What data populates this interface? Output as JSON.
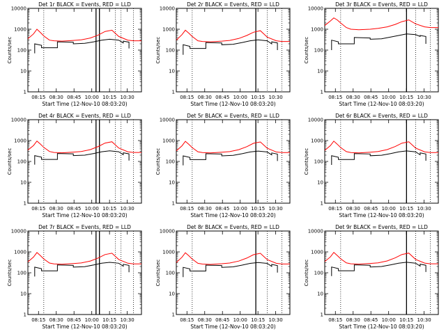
{
  "page": {
    "background": "#ffffff"
  },
  "chart_data": [
    {
      "type": "line",
      "title": "Det 1r BLACK = Events, RED = LLD",
      "xlabel": "Start Time (12-Nov-10 08:03:20)",
      "ylabel": "Counts/sec",
      "yscale": "log",
      "ylim": [
        1,
        10000
      ],
      "yticks": [
        "1",
        "10",
        "100",
        "1000",
        "10000"
      ],
      "xticks": [
        "08:15",
        "08:30",
        "08:45",
        "10:00",
        "10:15",
        "10:30"
      ],
      "series": [
        {
          "color": "#ff0000",
          "x": [
            0,
            0.05,
            0.08,
            0.11,
            0.14,
            0.19,
            0.23,
            0.3,
            0.4,
            0.47,
            0.55,
            0.62,
            0.68,
            0.74,
            0.8,
            0.88,
            0.93,
            1.0
          ],
          "y": [
            350,
            600,
            1000,
            700,
            480,
            300,
            280,
            270,
            290,
            310,
            380,
            530,
            780,
            900,
            450,
            300,
            280,
            280
          ]
        },
        {
          "color": "#000000",
          "x": [
            0.06,
            0.06,
            0.12,
            0.12,
            0.26,
            0.26,
            0.4,
            0.4,
            0.5,
            0.58,
            0.65,
            0.72,
            0.8,
            0.84,
            0.84,
            0.89,
            0.89
          ],
          "y": [
            70,
            200,
            170,
            130,
            130,
            250,
            240,
            200,
            210,
            250,
            300,
            330,
            300,
            220,
            270,
            240,
            120
          ]
        }
      ],
      "markers": [
        0.14,
        0.77,
        0.82,
        0.93
      ],
      "bars": [
        0.6,
        0.63
      ]
    },
    {
      "type": "line",
      "title": "Det 2r BLACK = Events, RED = LLD",
      "xlabel": "Start Time (12-Nov-10 08:03:20)",
      "ylabel": "Counts/sec",
      "yscale": "log",
      "ylim": [
        1,
        10000
      ],
      "yticks": [
        "1",
        "10",
        "100",
        "1000",
        "10000"
      ],
      "xticks": [
        "08:15",
        "08:30",
        "08:45",
        "10:00",
        "10:15",
        "10:30"
      ],
      "series": [
        {
          "color": "#ff0000",
          "x": [
            0,
            0.05,
            0.08,
            0.11,
            0.14,
            0.19,
            0.23,
            0.3,
            0.4,
            0.47,
            0.55,
            0.62,
            0.68,
            0.74,
            0.8,
            0.88,
            0.93,
            1.0
          ],
          "y": [
            300,
            550,
            900,
            650,
            450,
            280,
            260,
            250,
            270,
            290,
            360,
            500,
            720,
            850,
            420,
            280,
            260,
            260
          ]
        },
        {
          "color": "#000000",
          "x": [
            0.06,
            0.06,
            0.12,
            0.12,
            0.26,
            0.26,
            0.4,
            0.4,
            0.5,
            0.58,
            0.65,
            0.72,
            0.8,
            0.84,
            0.84,
            0.89,
            0.89
          ],
          "y": [
            60,
            180,
            150,
            120,
            120,
            230,
            220,
            180,
            190,
            230,
            280,
            310,
            280,
            200,
            250,
            220,
            100
          ]
        }
      ],
      "markers": [
        0.14,
        0.8,
        0.93
      ],
      "bars": [
        0.7
      ]
    },
    {
      "type": "line",
      "title": "Det 3r BLACK = Events, RED = LLD",
      "xlabel": "Start Time (12-Nov-10 08:03:20)",
      "ylabel": "Counts/sec",
      "yscale": "log",
      "ylim": [
        1,
        10000
      ],
      "yticks": [
        "1",
        "10",
        "100",
        "1000",
        "10000"
      ],
      "xticks": [
        "08:15",
        "08:30",
        "08:45",
        "10:00",
        "10:15",
        "10:30"
      ],
      "series": [
        {
          "color": "#ff0000",
          "x": [
            0,
            0.05,
            0.08,
            0.11,
            0.14,
            0.19,
            0.23,
            0.3,
            0.4,
            0.47,
            0.55,
            0.62,
            0.68,
            0.74,
            0.8,
            0.88,
            0.93,
            1.0
          ],
          "y": [
            1500,
            2500,
            3500,
            2800,
            2000,
            1200,
            1000,
            950,
            1000,
            1100,
            1300,
            1700,
            2300,
            2800,
            1800,
            1300,
            1200,
            1200
          ]
        },
        {
          "color": "#000000",
          "x": [
            0.06,
            0.06,
            0.12,
            0.12,
            0.26,
            0.26,
            0.4,
            0.4,
            0.5,
            0.58,
            0.65,
            0.72,
            0.8,
            0.84,
            0.84,
            0.89,
            0.89
          ],
          "y": [
            100,
            300,
            250,
            200,
            200,
            400,
            380,
            330,
            350,
            420,
            500,
            600,
            550,
            450,
            500,
            450,
            200
          ]
        }
      ],
      "markers": [
        0.14,
        0.8,
        0.93
      ],
      "bars": [
        0.72
      ]
    },
    {
      "type": "line",
      "title": "Det 4r BLACK = Events, RED = LLD",
      "xlabel": "Start Time (12-Nov-10 08:03:20)",
      "ylabel": "Counts/sec",
      "yscale": "log",
      "ylim": [
        1,
        10000
      ],
      "yticks": [
        "1",
        "10",
        "100",
        "1000",
        "10000"
      ],
      "xticks": [
        "08:15",
        "08:30",
        "08:45",
        "10:00",
        "10:15",
        "10:30"
      ],
      "series": [
        {
          "color": "#ff0000",
          "x": [
            0,
            0.05,
            0.08,
            0.11,
            0.14,
            0.19,
            0.23,
            0.3,
            0.4,
            0.47,
            0.55,
            0.62,
            0.68,
            0.74,
            0.8,
            0.88,
            0.93,
            1.0
          ],
          "y": [
            350,
            580,
            950,
            680,
            470,
            300,
            270,
            260,
            280,
            300,
            370,
            520,
            760,
            880,
            440,
            290,
            270,
            270
          ]
        },
        {
          "color": "#000000",
          "x": [
            0.06,
            0.06,
            0.12,
            0.12,
            0.26,
            0.26,
            0.4,
            0.4,
            0.5,
            0.58,
            0.65,
            0.72,
            0.8,
            0.84,
            0.84,
            0.89,
            0.89
          ],
          "y": [
            70,
            190,
            160,
            125,
            125,
            240,
            230,
            190,
            200,
            240,
            290,
            320,
            290,
            210,
            260,
            230,
            110
          ]
        }
      ],
      "markers": [
        0.14,
        0.77,
        0.82,
        0.93
      ],
      "bars": [
        0.6,
        0.63
      ]
    },
    {
      "type": "line",
      "title": "Det 5r BLACK = Events, RED = LLD",
      "xlabel": "Start Time (12-Nov-10 08:03:20)",
      "ylabel": "Counts/sec",
      "yscale": "log",
      "ylim": [
        1,
        10000
      ],
      "yticks": [
        "1",
        "10",
        "100",
        "1000",
        "10000"
      ],
      "xticks": [
        "08:15",
        "08:30",
        "08:45",
        "10:00",
        "10:15",
        "10:30"
      ],
      "series": [
        {
          "color": "#ff0000",
          "x": [
            0,
            0.05,
            0.08,
            0.11,
            0.14,
            0.19,
            0.23,
            0.3,
            0.4,
            0.47,
            0.55,
            0.62,
            0.68,
            0.74,
            0.8,
            0.88,
            0.93,
            1.0
          ],
          "y": [
            320,
            560,
            920,
            660,
            460,
            290,
            265,
            255,
            275,
            295,
            365,
            510,
            740,
            860,
            430,
            285,
            265,
            265
          ]
        },
        {
          "color": "#000000",
          "x": [
            0.06,
            0.06,
            0.12,
            0.12,
            0.26,
            0.26,
            0.4,
            0.4,
            0.5,
            0.58,
            0.65,
            0.72,
            0.8,
            0.84,
            0.84,
            0.89,
            0.89
          ],
          "y": [
            65,
            185,
            155,
            122,
            122,
            235,
            225,
            185,
            195,
            235,
            285,
            315,
            285,
            205,
            255,
            225,
            105
          ]
        }
      ],
      "markers": [
        0.14,
        0.8,
        0.93
      ],
      "bars": [
        0.7
      ]
    },
    {
      "type": "line",
      "title": "Det 6r BLACK = Events, RED = LLD",
      "xlabel": "Start Time (12-Nov-10 08:03:20)",
      "ylabel": "Counts/sec",
      "yscale": "log",
      "ylim": [
        1,
        10000
      ],
      "yticks": [
        "1",
        "10",
        "100",
        "1000",
        "10000"
      ],
      "xticks": [
        "08:15",
        "08:30",
        "08:45",
        "10:00",
        "10:15",
        "10:30"
      ],
      "series": [
        {
          "color": "#ff0000",
          "x": [
            0,
            0.05,
            0.08,
            0.11,
            0.14,
            0.19,
            0.23,
            0.3,
            0.4,
            0.47,
            0.55,
            0.62,
            0.68,
            0.74,
            0.8,
            0.88,
            0.93,
            1.0
          ],
          "y": [
            340,
            570,
            940,
            670,
            465,
            295,
            268,
            258,
            278,
            298,
            368,
            515,
            750,
            870,
            435,
            288,
            268,
            268
          ]
        },
        {
          "color": "#000000",
          "x": [
            0.06,
            0.06,
            0.12,
            0.12,
            0.26,
            0.26,
            0.4,
            0.4,
            0.5,
            0.58,
            0.65,
            0.72,
            0.8,
            0.84,
            0.84,
            0.89,
            0.89
          ],
          "y": [
            68,
            188,
            158,
            124,
            124,
            238,
            228,
            188,
            198,
            238,
            288,
            318,
            288,
            208,
            258,
            228,
            108
          ]
        }
      ],
      "markers": [
        0.14,
        0.8,
        0.93
      ],
      "bars": [
        0.72
      ]
    },
    {
      "type": "line",
      "title": "Det 7r BLACK = Events, RED = LLD",
      "xlabel": "Start Time (12-Nov-10 08:03:20)",
      "ylabel": "Counts/sec",
      "yscale": "log",
      "ylim": [
        1,
        10000
      ],
      "yticks": [
        "1",
        "10",
        "100",
        "1000",
        "10000"
      ],
      "xticks": [
        "08:15",
        "08:30",
        "08:45",
        "10:00",
        "10:15",
        "10:30"
      ],
      "series": [
        {
          "color": "#ff0000",
          "x": [
            0,
            0.05,
            0.08,
            0.11,
            0.14,
            0.19,
            0.23,
            0.3,
            0.4,
            0.47,
            0.55,
            0.62,
            0.68,
            0.74,
            0.8,
            0.88,
            0.93,
            1.0
          ],
          "y": [
            330,
            565,
            930,
            665,
            462,
            292,
            266,
            256,
            276,
            296,
            366,
            512,
            745,
            865,
            432,
            286,
            266,
            266
          ]
        },
        {
          "color": "#000000",
          "x": [
            0.06,
            0.06,
            0.12,
            0.12,
            0.26,
            0.26,
            0.4,
            0.4,
            0.5,
            0.58,
            0.65,
            0.72,
            0.8,
            0.84,
            0.84,
            0.89,
            0.89
          ],
          "y": [
            66,
            186,
            156,
            123,
            123,
            236,
            226,
            186,
            196,
            236,
            286,
            316,
            286,
            206,
            256,
            226,
            106
          ]
        }
      ],
      "markers": [
        0.14,
        0.77,
        0.82,
        0.93
      ],
      "bars": [
        0.6,
        0.63
      ]
    },
    {
      "type": "line",
      "title": "Det 8r BLACK = Events, RED = LLD",
      "xlabel": "Start Time (12-Nov-10 08:03:20)",
      "ylabel": "Counts/sec",
      "yscale": "log",
      "ylim": [
        1,
        10000
      ],
      "yticks": [
        "1",
        "10",
        "100",
        "1000",
        "10000"
      ],
      "xticks": [
        "08:15",
        "08:30",
        "08:45",
        "10:00",
        "10:15",
        "10:30"
      ],
      "series": [
        {
          "color": "#ff0000",
          "x": [
            0,
            0.05,
            0.08,
            0.11,
            0.14,
            0.19,
            0.23,
            0.3,
            0.4,
            0.47,
            0.55,
            0.62,
            0.68,
            0.74,
            0.8,
            0.88,
            0.93,
            1.0
          ],
          "y": [
            310,
            555,
            910,
            655,
            455,
            285,
            262,
            252,
            272,
            292,
            362,
            505,
            735,
            855,
            428,
            283,
            263,
            263
          ]
        },
        {
          "color": "#000000",
          "x": [
            0.06,
            0.06,
            0.12,
            0.12,
            0.26,
            0.26,
            0.4,
            0.4,
            0.5,
            0.58,
            0.65,
            0.72,
            0.8,
            0.84,
            0.84,
            0.89,
            0.89
          ],
          "y": [
            62,
            182,
            152,
            121,
            121,
            232,
            222,
            182,
            192,
            232,
            282,
            312,
            282,
            202,
            252,
            222,
            102
          ]
        }
      ],
      "markers": [
        0.14,
        0.8,
        0.93
      ],
      "bars": [
        0.7
      ]
    },
    {
      "type": "line",
      "title": "Det 9r BLACK = Events, RED = LLD",
      "xlabel": "Start Time (12-Nov-10 08:03:20)",
      "ylabel": "Counts/sec",
      "yscale": "log",
      "ylim": [
        1,
        10000
      ],
      "yticks": [
        "1",
        "10",
        "100",
        "1000",
        "10000"
      ],
      "xticks": [
        "08:15",
        "08:30",
        "08:45",
        "10:00",
        "10:15",
        "10:30"
      ],
      "series": [
        {
          "color": "#ff0000",
          "x": [
            0,
            0.05,
            0.08,
            0.11,
            0.14,
            0.19,
            0.23,
            0.3,
            0.4,
            0.47,
            0.55,
            0.62,
            0.68,
            0.74,
            0.8,
            0.88,
            0.93,
            1.0
          ],
          "y": [
            345,
            575,
            945,
            675,
            468,
            298,
            270,
            260,
            280,
            300,
            370,
            518,
            755,
            875,
            438,
            290,
            270,
            270
          ]
        },
        {
          "color": "#000000",
          "x": [
            0.06,
            0.06,
            0.12,
            0.12,
            0.26,
            0.26,
            0.4,
            0.4,
            0.5,
            0.58,
            0.65,
            0.72,
            0.8,
            0.84,
            0.84,
            0.89,
            0.89
          ],
          "y": [
            69,
            189,
            159,
            125,
            125,
            239,
            229,
            189,
            199,
            239,
            289,
            319,
            289,
            209,
            259,
            229,
            109
          ]
        }
      ],
      "markers": [
        0.14,
        0.8,
        0.93
      ],
      "bars": [
        0.72
      ]
    }
  ]
}
